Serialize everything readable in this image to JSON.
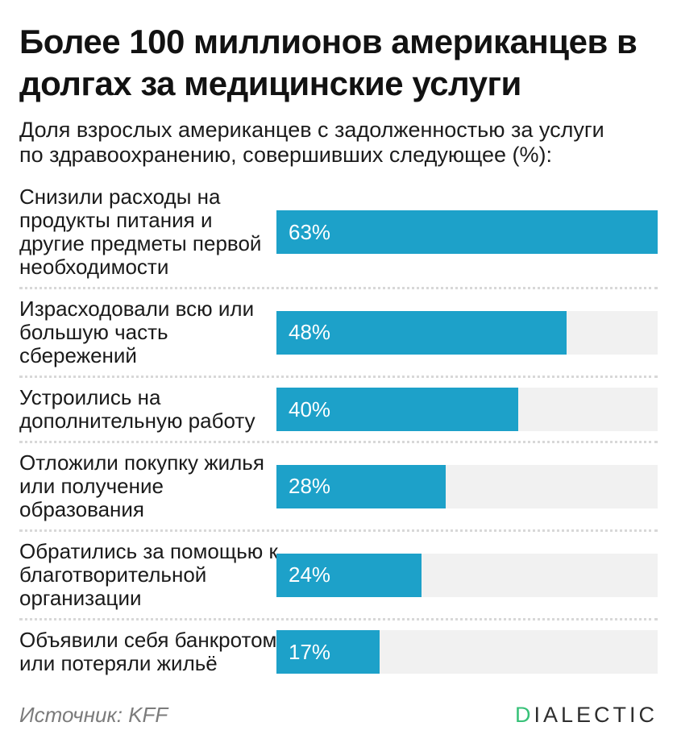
{
  "chart_data": {
    "type": "bar",
    "orientation": "horizontal",
    "title": "Более 100 миллионов американцев в\nдолгах за медицинские услуги",
    "subtitle": "Доля взрослых американцев с задолженностью за услуги\nпо здравоохранению, совершивших следующее (%):",
    "unit": "%",
    "categories": [
      "Снизили расходы на\nпродукты питания и\nдругие предметы первой\nнеобходимости",
      "Израсходовали всю или\nбольшую часть\nсбережений",
      "Устроились на\nдополнительную работу",
      "Отложили покупку жилья\nили получение\nобразования",
      "Обратились за помощью к\nблаготворительной\nорганизации",
      "Объявили себя банкротом\nили потеряли жильё"
    ],
    "values": [
      63,
      48,
      40,
      28,
      24,
      17
    ],
    "value_labels": [
      "63%",
      "48%",
      "40%",
      "28%",
      "24%",
      "17%"
    ],
    "scale_max": 63,
    "xlim": [
      0,
      63
    ],
    "grid": false,
    "legend": false,
    "bar_color": "#1DA1C9",
    "track_color": "#F1F1F1",
    "value_label_color": "#FFFFFF"
  },
  "footer": {
    "source": "Источник: KFF",
    "logo_d": "D",
    "logo_rest": "IALECTIC",
    "logo_d_color": "#37C178"
  }
}
